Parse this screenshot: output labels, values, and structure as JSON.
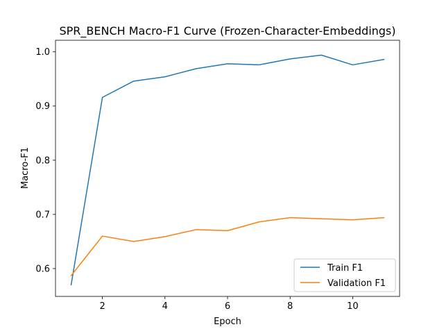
{
  "chart_data": {
    "type": "line",
    "title": "SPR_BENCH Macro-F1 Curve (Frozen-Character-Embeddings)",
    "xlabel": "Epoch",
    "ylabel": "Macro-F1",
    "xlim": [
      0.5,
      11.5
    ],
    "ylim": [
      0.5486,
      1.0214
    ],
    "xticks": [
      2,
      4,
      6,
      8,
      10
    ],
    "xtick_labels": [
      "2",
      "4",
      "6",
      "8",
      "10"
    ],
    "yticks": [
      0.6,
      0.7,
      0.8,
      0.9,
      1.0
    ],
    "ytick_labels": [
      "0.6",
      "0.7",
      "0.8",
      "0.9",
      "1.0"
    ],
    "grid": false,
    "legend": "lower-right",
    "x": [
      1,
      2,
      3,
      4,
      5,
      6,
      7,
      8,
      9,
      10,
      11
    ],
    "series": [
      {
        "name": "Train F1",
        "color": "#1f77b4",
        "values": [
          0.57,
          0.916,
          0.946,
          0.954,
          0.969,
          0.978,
          0.976,
          0.987,
          0.994,
          0.976,
          0.986
        ]
      },
      {
        "name": "Validation F1",
        "color": "#ff7f0e",
        "values": [
          0.587,
          0.66,
          0.65,
          0.659,
          0.672,
          0.67,
          0.686,
          0.694,
          0.692,
          0.69,
          0.694
        ]
      }
    ]
  }
}
